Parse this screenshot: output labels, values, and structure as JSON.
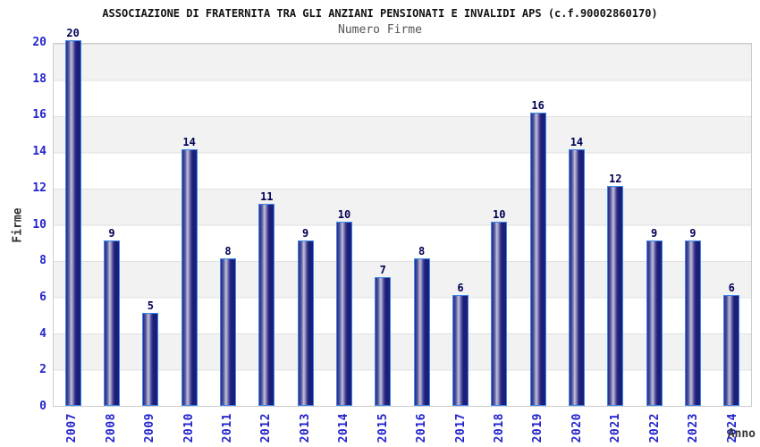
{
  "chart_data": {
    "type": "bar",
    "title": "ASSOCIAZIONE DI FRATERNITA TRA GLI ANZIANI PENSIONATI E INVALIDI APS (c.f.90002860170)",
    "subtitle": "Numero Firme",
    "xlabel": "Anno",
    "ylabel": "Firme",
    "categories": [
      "2007",
      "2008",
      "2009",
      "2010",
      "2011",
      "2012",
      "2013",
      "2014",
      "2015",
      "2016",
      "2017",
      "2018",
      "2019",
      "2020",
      "2021",
      "2022",
      "2023",
      "2024"
    ],
    "values": [
      20,
      9,
      5,
      14,
      8,
      11,
      9,
      10,
      7,
      8,
      6,
      10,
      16,
      14,
      12,
      9,
      9,
      6
    ],
    "ylim": [
      0,
      20
    ],
    "yticks": [
      0,
      2,
      4,
      6,
      8,
      10,
      12,
      14,
      16,
      18,
      20
    ],
    "grid": "horizontal-bands-every-2-units",
    "legend": "none",
    "colors": {
      "bar_dark": "#1d1d7a",
      "bar_highlight": "#c0c0dc",
      "bar_border": "#3b87ea",
      "tick_label": "#2323cc",
      "value_label": "#000055",
      "band_gray": "#f2f2f2",
      "band_white": "#ffffff",
      "grid_line": "#e0e0e0",
      "plot_border": "#cccccc",
      "title_color": "#111111",
      "subtitle_color": "#555555",
      "axis_title_color": "#333333"
    }
  }
}
